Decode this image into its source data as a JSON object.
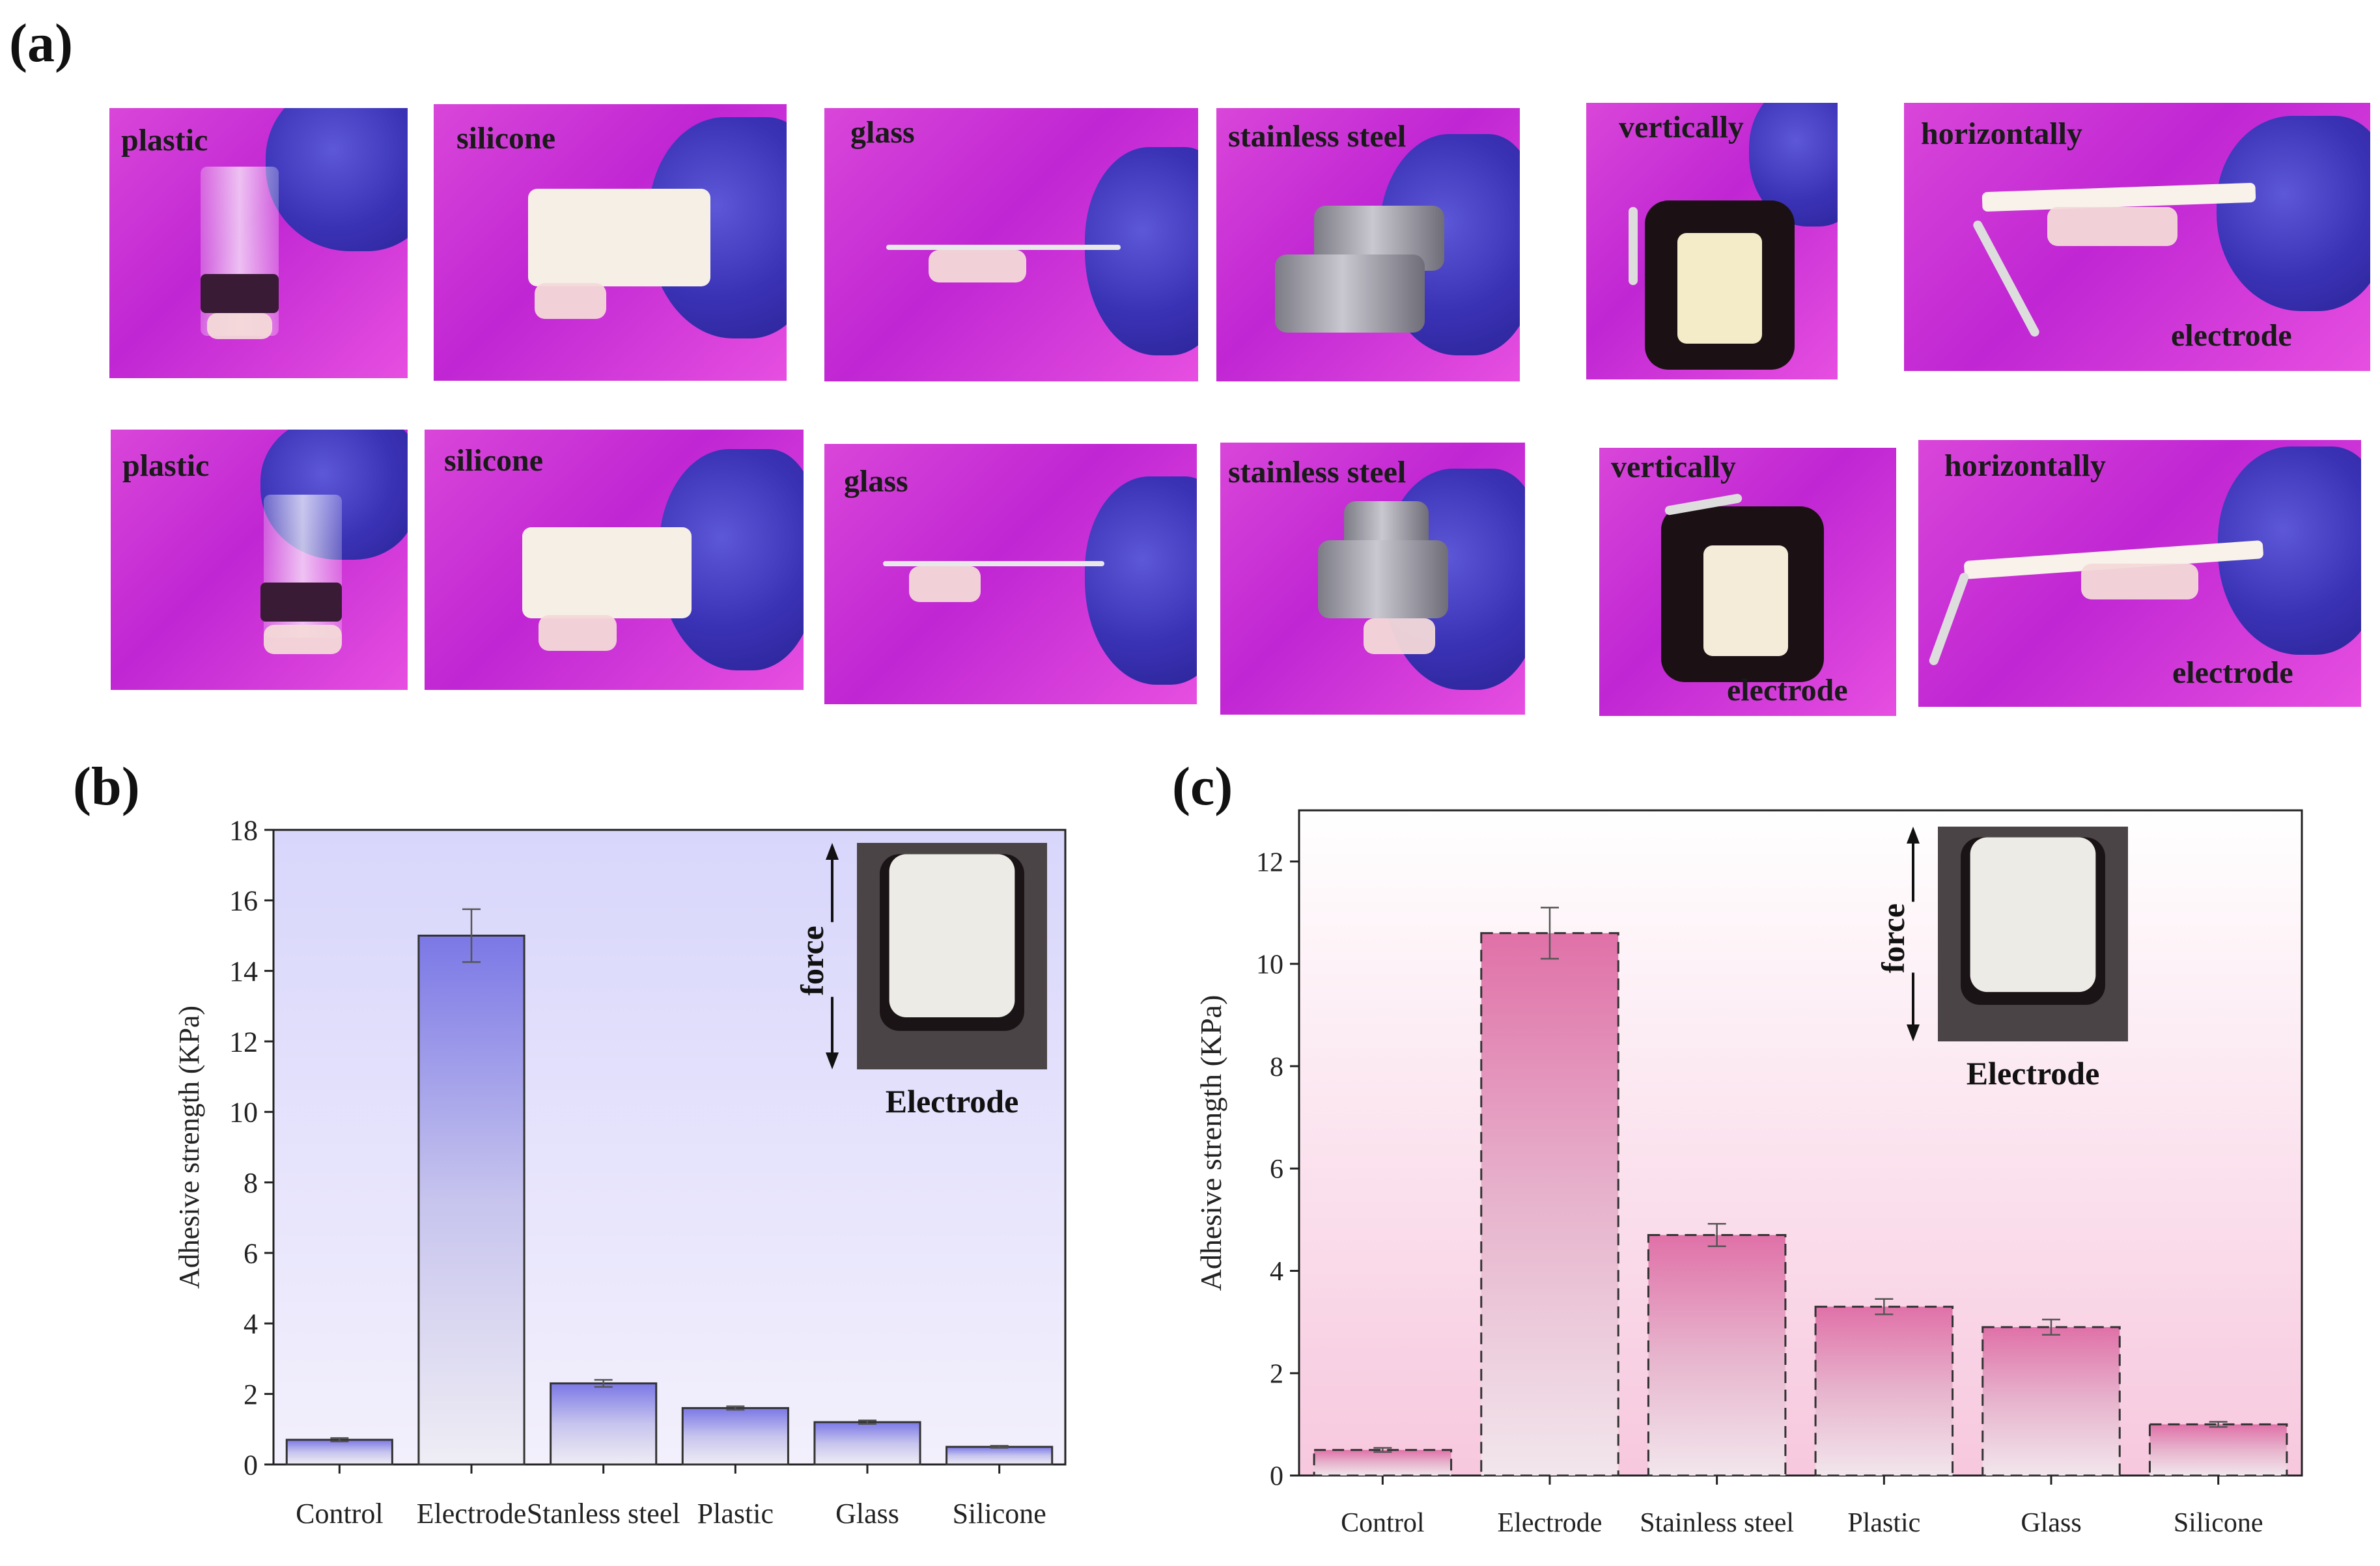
{
  "panel_labels": {
    "a": "(a)",
    "b": "(b)",
    "c": "(c)"
  },
  "photos_row1": [
    "plastic",
    "silicone",
    "glass",
    "stainless steel",
    "vertically",
    "horizontally"
  ],
  "photos_row1_extra": {
    "horizontally_sub": "electrode"
  },
  "photos_row2": [
    "plastic",
    "silicone",
    "glass",
    "stainless steel",
    "vertically",
    "horizontally"
  ],
  "photos_row2_extra": {
    "vertically_sub": "electrode",
    "horizontally_sub": "electrode"
  },
  "colors": {
    "photo_bg": "#d946d9",
    "chart_b_fill": "#7b78e6",
    "chart_c_fill": "#e071a8"
  },
  "chart_data": [
    {
      "type": "bar",
      "title": "",
      "xlabel": "",
      "ylabel": "Adhesive strength (KPa)",
      "categories": [
        "Control",
        "Electrode",
        "Stanless steel",
        "Plastic",
        "Glass",
        "Silicone"
      ],
      "values": [
        0.7,
        15.0,
        2.3,
        1.6,
        1.2,
        0.5
      ],
      "errors": [
        0.05,
        0.75,
        0.1,
        0.05,
        0.05,
        0.03
      ],
      "ylim": [
        0,
        18
      ],
      "yticks": [
        0,
        2,
        4,
        6,
        8,
        10,
        12,
        14,
        16,
        18
      ],
      "inset": {
        "force_label": "force",
        "caption": "Electrode"
      }
    },
    {
      "type": "bar",
      "title": "",
      "xlabel": "",
      "ylabel": "Adhesive strength (KPa)",
      "categories": [
        "Control",
        "Electrode",
        "Stainless steel",
        "Plastic",
        "Glass",
        "Silicone"
      ],
      "values": [
        0.5,
        10.6,
        4.7,
        3.3,
        2.9,
        1.0
      ],
      "errors": [
        0.04,
        0.5,
        0.22,
        0.15,
        0.15,
        0.05
      ],
      "ylim": [
        0,
        13
      ],
      "yticks": [
        0,
        2,
        4,
        6,
        8,
        10,
        12
      ],
      "inset": {
        "force_label": "force",
        "caption": "Electrode"
      }
    }
  ]
}
